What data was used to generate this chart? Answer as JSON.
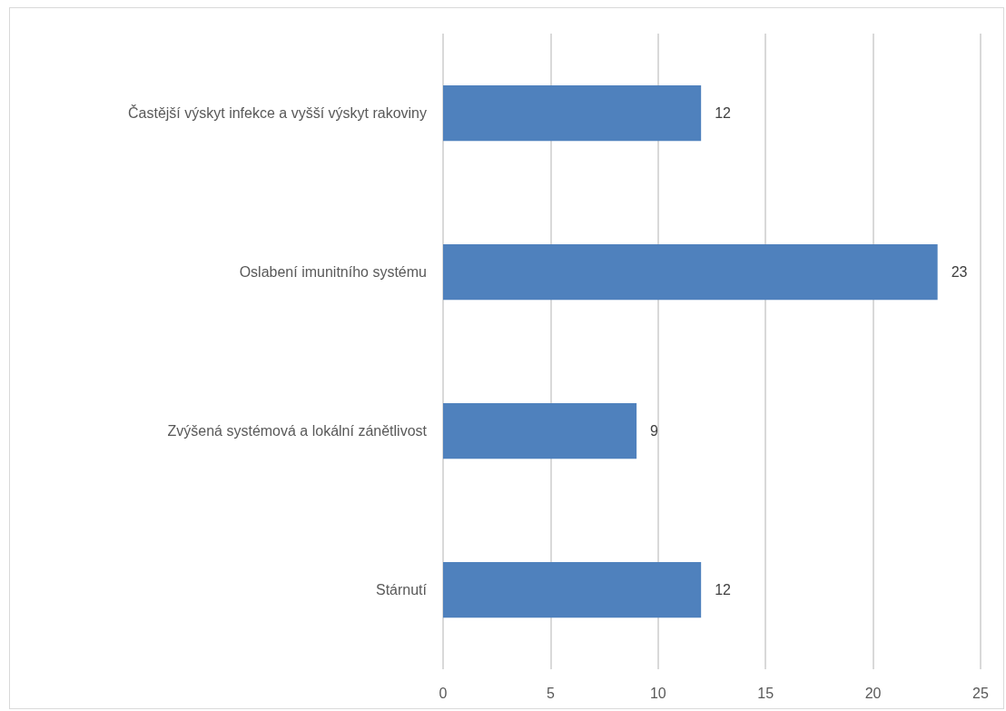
{
  "chart_data": {
    "type": "bar",
    "orientation": "horizontal",
    "categories": [
      "Častější výskyt infekce a vyšší výskyt rakoviny",
      "Oslabení imunitního systému",
      "Zvýšená systémová a lokální zánětlivost",
      "Stárnutí"
    ],
    "values": [
      12,
      23,
      9,
      12
    ],
    "color": "#4f81bd",
    "xlim": [
      0,
      25
    ],
    "xticks": [
      0,
      5,
      10,
      15,
      20,
      25
    ],
    "grid": "x",
    "data_labels": true
  }
}
